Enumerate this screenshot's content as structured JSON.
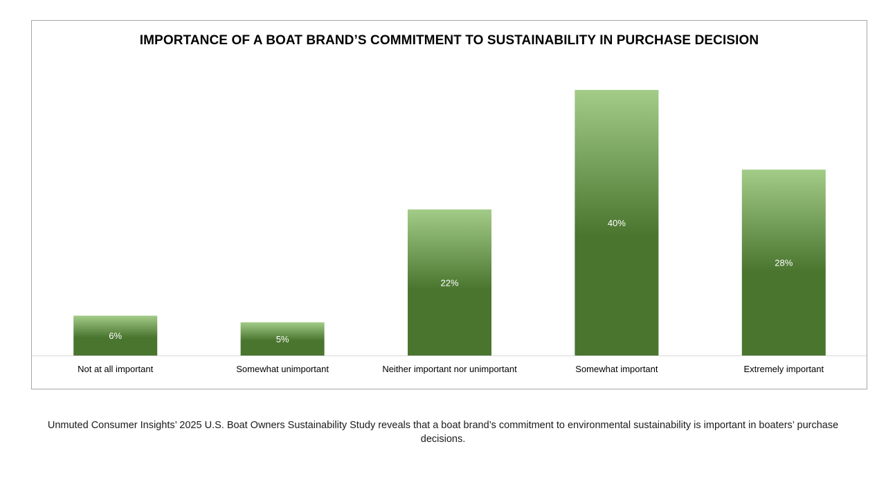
{
  "chart_data": {
    "type": "bar",
    "title": "IMPORTANCE OF A BOAT BRAND’S COMMITMENT TO SUSTAINABILITY IN PURCHASE DECISION",
    "categories": [
      "Not at all important",
      "Somewhat unimportant",
      "Neither important nor unimportant",
      "Somewhat important",
      "Extremely important"
    ],
    "values": [
      6,
      5,
      22,
      40,
      28
    ],
    "data_labels": [
      "6%",
      "5%",
      "22%",
      "40%",
      "28%"
    ],
    "unit": "%",
    "ylim": [
      0,
      45
    ],
    "grid": false,
    "legend": "none",
    "bar_color_top": "#a2cc88",
    "bar_color_bottom": "#4a752f",
    "label_color": "#ffffff"
  },
  "caption": "Unmuted Consumer Insights’ 2025 U.S. Boat Owners Sustainability Study reveals that a boat brand’s commitment to environmental sustainability is important in boaters’ purchase decisions."
}
